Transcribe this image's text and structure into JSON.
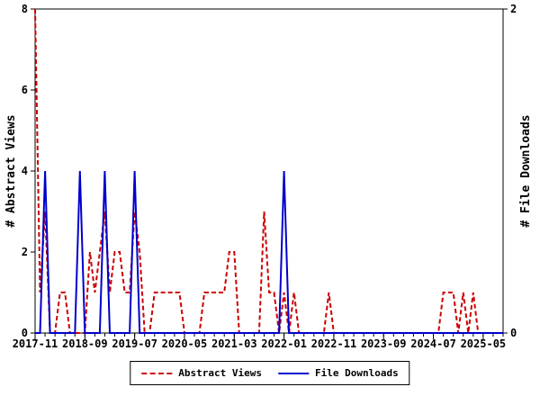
{
  "left_axis": {
    "label": "# Abstract Views",
    "ticks": [
      0,
      2,
      4,
      6,
      8
    ],
    "range": [
      0,
      8
    ]
  },
  "right_axis": {
    "label": "# File Downloads",
    "ticks": [
      0,
      2
    ],
    "range": [
      0,
      2
    ]
  },
  "legend": {
    "items": [
      {
        "label": "Abstract Views",
        "color": "#cc0000",
        "style": "dashed"
      },
      {
        "label": "File Downloads",
        "color": "#0000cd",
        "style": "solid"
      }
    ]
  },
  "colors": {
    "abstract_views": "#cc0000",
    "file_downloads": "#0000cd",
    "axis": "#000000",
    "background": "#ffffff"
  },
  "chart_data": {
    "type": "line",
    "x": [
      "2017-11",
      "2017-12",
      "2018-01",
      "2018-02",
      "2018-03",
      "2018-04",
      "2018-05",
      "2018-06",
      "2018-07",
      "2018-08",
      "2018-09",
      "2018-10",
      "2018-11",
      "2018-12",
      "2019-01",
      "2019-02",
      "2019-03",
      "2019-04",
      "2019-05",
      "2019-06",
      "2019-07",
      "2019-08",
      "2019-09",
      "2019-10",
      "2019-11",
      "2019-12",
      "2020-01",
      "2020-02",
      "2020-03",
      "2020-04",
      "2020-05",
      "2020-06",
      "2020-07",
      "2020-08",
      "2020-09",
      "2020-10",
      "2020-11",
      "2020-12",
      "2021-01",
      "2021-02",
      "2021-03",
      "2021-04",
      "2021-05",
      "2021-06",
      "2021-07",
      "2021-08",
      "2021-09",
      "2021-10",
      "2021-11",
      "2021-12",
      "2022-01",
      "2022-02",
      "2022-03",
      "2022-04",
      "2022-05",
      "2022-06",
      "2022-07",
      "2022-08",
      "2022-09",
      "2022-10",
      "2022-11",
      "2022-12",
      "2023-01",
      "2023-02",
      "2023-03",
      "2023-04",
      "2023-05",
      "2023-06",
      "2023-07",
      "2023-08",
      "2023-09",
      "2023-10",
      "2023-11",
      "2023-12",
      "2024-01",
      "2024-02",
      "2024-03",
      "2024-04",
      "2024-05",
      "2024-06",
      "2024-07",
      "2024-08",
      "2024-09",
      "2024-10",
      "2024-11",
      "2024-12",
      "2025-01",
      "2025-02",
      "2025-03",
      "2025-04",
      "2025-05",
      "2025-06",
      "2025-07",
      "2025-08",
      "2025-09"
    ],
    "series": [
      {
        "name": "Abstract Views",
        "axis": "left",
        "color": "#cc0000",
        "style": "dashed",
        "values": [
          8,
          1,
          3,
          0,
          0,
          1,
          1,
          0,
          0,
          0,
          0,
          2,
          1,
          2,
          3,
          1,
          2,
          2,
          1,
          1,
          3,
          2,
          0,
          0,
          1,
          1,
          1,
          1,
          1,
          1,
          0,
          0,
          0,
          0,
          1,
          1,
          1,
          1,
          1,
          2,
          2,
          0,
          0,
          0,
          0,
          0,
          3,
          1,
          1,
          0,
          1,
          0,
          1,
          0,
          0,
          0,
          0,
          0,
          0,
          1,
          0,
          0,
          0,
          0,
          0,
          0,
          0,
          0,
          0,
          0,
          0,
          0,
          0,
          0,
          0,
          0,
          0,
          0,
          0,
          0,
          0,
          0,
          1,
          1,
          1,
          0,
          1,
          0,
          1,
          0,
          0,
          0,
          0,
          0,
          0
        ]
      },
      {
        "name": "File Downloads",
        "axis": "right",
        "color": "#0000cd",
        "style": "solid",
        "values": [
          0,
          0,
          1,
          0,
          0,
          0,
          0,
          0,
          0,
          1,
          0,
          0,
          0,
          0,
          1,
          0,
          0,
          0,
          0,
          0,
          1,
          0,
          0,
          0,
          0,
          0,
          0,
          0,
          0,
          0,
          0,
          0,
          0,
          0,
          0,
          0,
          0,
          0,
          0,
          0,
          0,
          0,
          0,
          0,
          0,
          0,
          0,
          0,
          0,
          0,
          1,
          0,
          0,
          0,
          0,
          0,
          0,
          0,
          0,
          0,
          0,
          0,
          0,
          0,
          0,
          0,
          0,
          0,
          0,
          0,
          0,
          0,
          0,
          0,
          0,
          0,
          0,
          0,
          0,
          0,
          0,
          0,
          0,
          0,
          0,
          0,
          0,
          0,
          0,
          0,
          0,
          0,
          0,
          0,
          0
        ]
      }
    ],
    "left_ylim": [
      0,
      8
    ],
    "right_ylim": [
      0,
      2
    ],
    "left_ticks": [
      0,
      2,
      4,
      6,
      8
    ],
    "right_ticks": [
      0,
      2
    ],
    "x_major_tick_indices": [
      0,
      10,
      20,
      30,
      40,
      50,
      60,
      70,
      80,
      90
    ],
    "x_major_tick_labels": [
      "2017-11",
      "2018-09",
      "2019-07",
      "2020-05",
      "2021-03",
      "2022-01",
      "2022-11",
      "2023-09",
      "2024-07",
      "2025-05"
    ],
    "x_minor_tick_every": 2,
    "grid": false,
    "legend_position": "bottom-center"
  }
}
